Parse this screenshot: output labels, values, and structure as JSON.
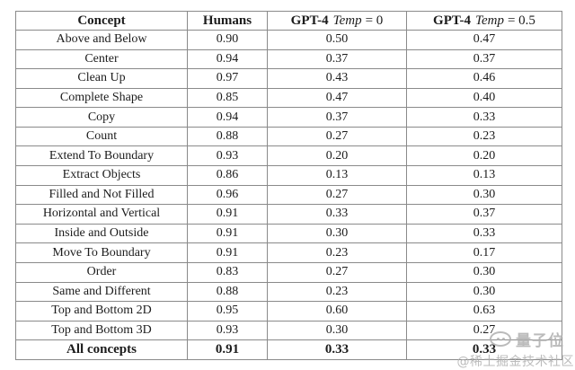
{
  "table": {
    "border_color": "#8a8a8a",
    "text_color": "#1c1c1c",
    "header": {
      "concept": "Concept",
      "humans": "Humans",
      "gpt4_t0": {
        "bold": "GPT-4",
        "italic": "Temp",
        "eq": "= 0"
      },
      "gpt4_t05": {
        "bold": "GPT-4",
        "italic": "Temp",
        "eq": "= 0.5"
      }
    },
    "rows": [
      {
        "concept": "Above and Below",
        "humans": "0.90",
        "gpt4_t0": "0.50",
        "gpt4_t05": "0.47"
      },
      {
        "concept": "Center",
        "humans": "0.94",
        "gpt4_t0": "0.37",
        "gpt4_t05": "0.37"
      },
      {
        "concept": "Clean Up",
        "humans": "0.97",
        "gpt4_t0": "0.43",
        "gpt4_t05": "0.46"
      },
      {
        "concept": "Complete Shape",
        "humans": "0.85",
        "gpt4_t0": "0.47",
        "gpt4_t05": "0.40"
      },
      {
        "concept": "Copy",
        "humans": "0.94",
        "gpt4_t0": "0.37",
        "gpt4_t05": "0.33"
      },
      {
        "concept": "Count",
        "humans": "0.88",
        "gpt4_t0": "0.27",
        "gpt4_t05": "0.23"
      },
      {
        "concept": "Extend To Boundary",
        "humans": "0.93",
        "gpt4_t0": "0.20",
        "gpt4_t05": "0.20"
      },
      {
        "concept": "Extract Objects",
        "humans": "0.86",
        "gpt4_t0": "0.13",
        "gpt4_t05": "0.13"
      },
      {
        "concept": "Filled and Not Filled",
        "humans": "0.96",
        "gpt4_t0": "0.27",
        "gpt4_t05": "0.30"
      },
      {
        "concept": "Horizontal and Vertical",
        "humans": "0.91",
        "gpt4_t0": "0.33",
        "gpt4_t05": "0.37"
      },
      {
        "concept": "Inside and Outside",
        "humans": "0.91",
        "gpt4_t0": "0.30",
        "gpt4_t05": "0.33"
      },
      {
        "concept": "Move To Boundary",
        "humans": "0.91",
        "gpt4_t0": "0.23",
        "gpt4_t05": "0.17"
      },
      {
        "concept": "Order",
        "humans": "0.83",
        "gpt4_t0": "0.27",
        "gpt4_t05": "0.30"
      },
      {
        "concept": "Same and Different",
        "humans": "0.88",
        "gpt4_t0": "0.23",
        "gpt4_t05": "0.30"
      },
      {
        "concept": "Top and Bottom 2D",
        "humans": "0.95",
        "gpt4_t0": "0.60",
        "gpt4_t05": "0.63"
      },
      {
        "concept": "Top and Bottom 3D",
        "humans": "0.93",
        "gpt4_t0": "0.30",
        "gpt4_t05": "0.27"
      }
    ],
    "footer": {
      "concept": "All concepts",
      "humans": "0.91",
      "gpt4_t0": "0.33",
      "gpt4_t05": "0.33"
    }
  },
  "watermark": {
    "brand": "量子位",
    "credit": "@稀土掘金技术社区",
    "color": "#b0b0b0"
  }
}
